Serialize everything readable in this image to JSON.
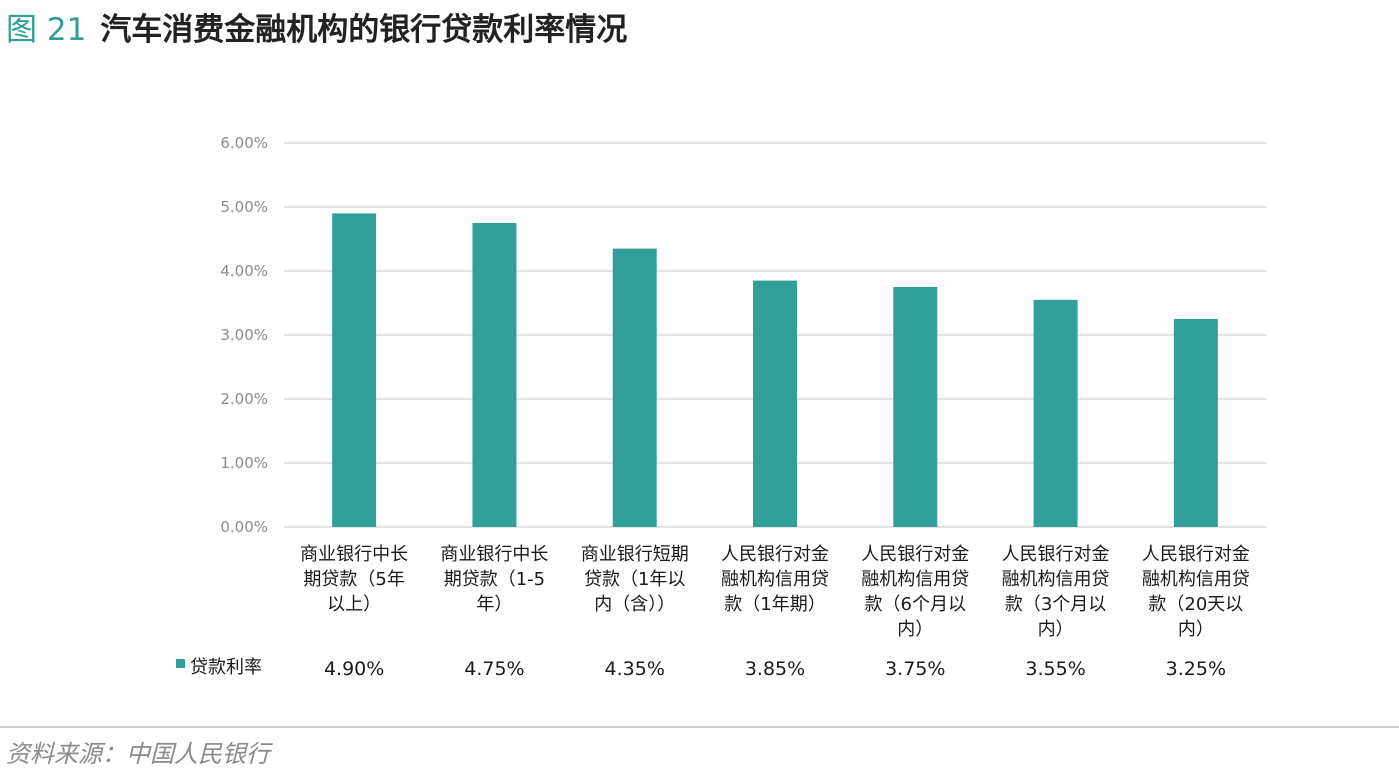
{
  "figure": {
    "number": "图 21",
    "title": "汽车消费金融机构的银行贷款利率情况",
    "source": "资料来源：中国人民银行"
  },
  "colors": {
    "accent": "#2e9e96",
    "bar": "#31a098",
    "grid": "#d9d9d9"
  },
  "chart_data": {
    "type": "bar",
    "title": "",
    "xlabel": "",
    "ylabel": "",
    "ylim": [
      0,
      0.06
    ],
    "yticks": [
      "0.00%",
      "1.00%",
      "2.00%",
      "3.00%",
      "4.00%",
      "5.00%",
      "6.00%"
    ],
    "grid": true,
    "legend_position": "bottom-left (data table)",
    "categories": [
      [
        "商业银行中长",
        "期贷款（5年",
        "以上）"
      ],
      [
        "商业银行中长",
        "期贷款（1-5",
        "年）"
      ],
      [
        "商业银行短期",
        "贷款（1年以",
        "内（含））"
      ],
      [
        "人民银行对金",
        "融机构信用贷",
        "款（1年期）"
      ],
      [
        "人民银行对金",
        "融机构信用贷",
        "款（6个月以",
        "内）"
      ],
      [
        "人民银行对金",
        "融机构信用贷",
        "款（3个月以",
        "内）"
      ],
      [
        "人民银行对金",
        "融机构信用贷",
        "款（20天以",
        "内）"
      ]
    ],
    "series": [
      {
        "name": "贷款利率",
        "values": [
          0.049,
          0.0475,
          0.0435,
          0.0385,
          0.0375,
          0.0355,
          0.0325
        ],
        "value_labels": [
          "4.90%",
          "4.75%",
          "4.35%",
          "3.85%",
          "3.75%",
          "3.55%",
          "3.25%"
        ]
      }
    ]
  }
}
